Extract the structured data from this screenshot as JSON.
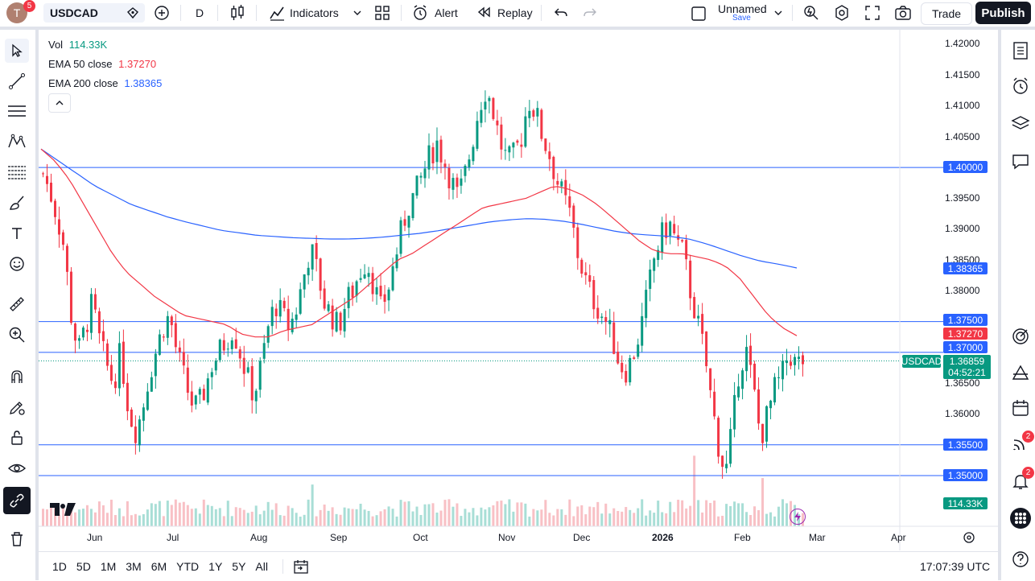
{
  "header": {
    "avatar_letter": "T",
    "notification_count": "5",
    "symbol": "USDCAD",
    "interval": "D",
    "indicators_label": "Indicators",
    "alert_label": "Alert",
    "replay_label": "Replay",
    "layout_name": "Unnamed",
    "layout_save": "Save",
    "trade_label": "Trade",
    "publish_label": "Publish"
  },
  "legend": {
    "vol_label": "Vol",
    "vol_value": "114.33K",
    "ema50_label": "EMA 50 close",
    "ema50_value": "1.37270",
    "ema200_label": "EMA 200 close",
    "ema200_value": "1.38365"
  },
  "colors": {
    "up": "#089981",
    "down": "#f23645",
    "ema50": "#f23645",
    "ema200": "#2962ff",
    "hline": "#2962ff"
  },
  "price_axis": [
    "1.42000",
    "1.41500",
    "1.41000",
    "1.40500",
    "1.40000",
    "1.39500",
    "1.39000",
    "1.38500",
    "1.38000",
    "1.37500",
    "1.37000",
    "1.36500",
    "1.36000",
    "1.35500",
    "1.35000"
  ],
  "tags": {
    "h_1_40000": "1.40000",
    "ema200": "1.38365",
    "h_1_37500": "1.37500",
    "ema50": "1.37270",
    "h_1_37000": "1.37000",
    "symbol_tag": "USDCAD",
    "last_price": "1.36859",
    "countdown": "04:52:21",
    "h_1_35500": "1.35500",
    "h_1_35000": "1.35000",
    "volume": "114.33K"
  },
  "time_axis": [
    "Jun",
    "Jul",
    "Aug",
    "Sep",
    "Oct",
    "Nov",
    "Dec",
    "2026",
    "Feb",
    "Mar",
    "Apr"
  ],
  "bottom": {
    "ranges": [
      "1D",
      "5D",
      "1M",
      "3M",
      "6M",
      "YTD",
      "1Y",
      "5Y",
      "All"
    ],
    "clock": "17:07:39 UTC"
  },
  "right_badges": {
    "signals": "2",
    "notifications": "2"
  },
  "chart_data": {
    "type": "candlestick",
    "symbol": "USDCAD",
    "interval": "D",
    "ylim": [
      1.348,
      1.422
    ],
    "horizontal_lines": [
      1.4,
      1.375,
      1.37,
      1.355,
      1.35
    ],
    "last_price": 1.36859,
    "indicators": [
      {
        "name": "EMA 50 close",
        "last": 1.3727
      },
      {
        "name": "EMA 200 close",
        "last": 1.38365
      }
    ],
    "x_ticks": [
      "Jun",
      "Jul",
      "Aug",
      "Sep",
      "Oct",
      "Nov",
      "Dec",
      "2026",
      "Feb",
      "Mar",
      "Apr"
    ],
    "close_path": [
      1.399,
      1.396,
      1.392,
      1.387,
      1.376,
      1.37,
      1.374,
      1.378,
      1.372,
      1.368,
      1.365,
      1.37,
      1.362,
      1.357,
      1.36,
      1.366,
      1.37,
      1.374,
      1.376,
      1.37,
      1.366,
      1.362,
      1.361,
      1.364,
      1.368,
      1.37,
      1.372,
      1.374,
      1.37,
      1.366,
      1.363,
      1.368,
      1.374,
      1.378,
      1.376,
      1.374,
      1.377,
      1.382,
      1.387,
      1.383,
      1.378,
      1.376,
      1.374,
      1.378,
      1.38,
      1.383,
      1.385,
      1.381,
      1.377,
      1.38,
      1.385,
      1.39,
      1.394,
      1.396,
      1.399,
      1.402,
      1.404,
      1.401,
      1.398,
      1.395,
      1.399,
      1.404,
      1.41,
      1.413,
      1.409,
      1.404,
      1.401,
      1.402,
      1.405,
      1.411,
      1.409,
      1.405,
      1.402,
      1.398,
      1.395,
      1.392,
      1.386,
      1.382,
      1.379,
      1.377,
      1.375,
      1.372,
      1.368,
      1.367,
      1.37,
      1.374,
      1.38,
      1.386,
      1.389,
      1.391,
      1.388,
      1.386,
      1.38,
      1.375,
      1.37,
      1.362,
      1.355,
      1.35,
      1.358,
      1.368,
      1.37,
      1.364,
      1.356,
      1.36,
      1.364,
      1.366,
      1.37,
      1.368,
      1.3686
    ],
    "ema50_path": [
      1.403,
      1.401,
      1.398,
      1.394,
      1.39,
      1.386,
      1.383,
      1.381,
      1.379,
      1.3775,
      1.376,
      1.3755,
      1.375,
      1.3745,
      1.373,
      1.3725,
      1.3725,
      1.3735,
      1.374,
      1.3745,
      1.376,
      1.3775,
      1.379,
      1.381,
      1.383,
      1.385,
      1.386,
      1.3875,
      1.389,
      1.3905,
      1.392,
      1.3935,
      1.394,
      1.3945,
      1.395,
      1.396,
      1.397,
      1.3965,
      1.3955,
      1.394,
      1.392,
      1.39,
      1.388,
      1.3865,
      1.386,
      1.386,
      1.3855,
      1.385,
      1.384,
      1.382,
      1.379,
      1.376,
      1.374,
      1.3727
    ],
    "ema200_path": [
      1.403,
      1.401,
      1.399,
      1.397,
      1.3955,
      1.394,
      1.393,
      1.392,
      1.3912,
      1.3905,
      1.3898,
      1.3894,
      1.389,
      1.3888,
      1.3886,
      1.3885,
      1.3884,
      1.3884,
      1.3885,
      1.3887,
      1.389,
      1.3893,
      1.3897,
      1.3902,
      1.3907,
      1.3912,
      1.3915,
      1.3917,
      1.3916,
      1.3913,
      1.3908,
      1.3902,
      1.3896,
      1.3892,
      1.389,
      1.3888,
      1.3884,
      1.3876,
      1.3866,
      1.3856,
      1.3848,
      1.3843,
      1.3837
    ]
  }
}
